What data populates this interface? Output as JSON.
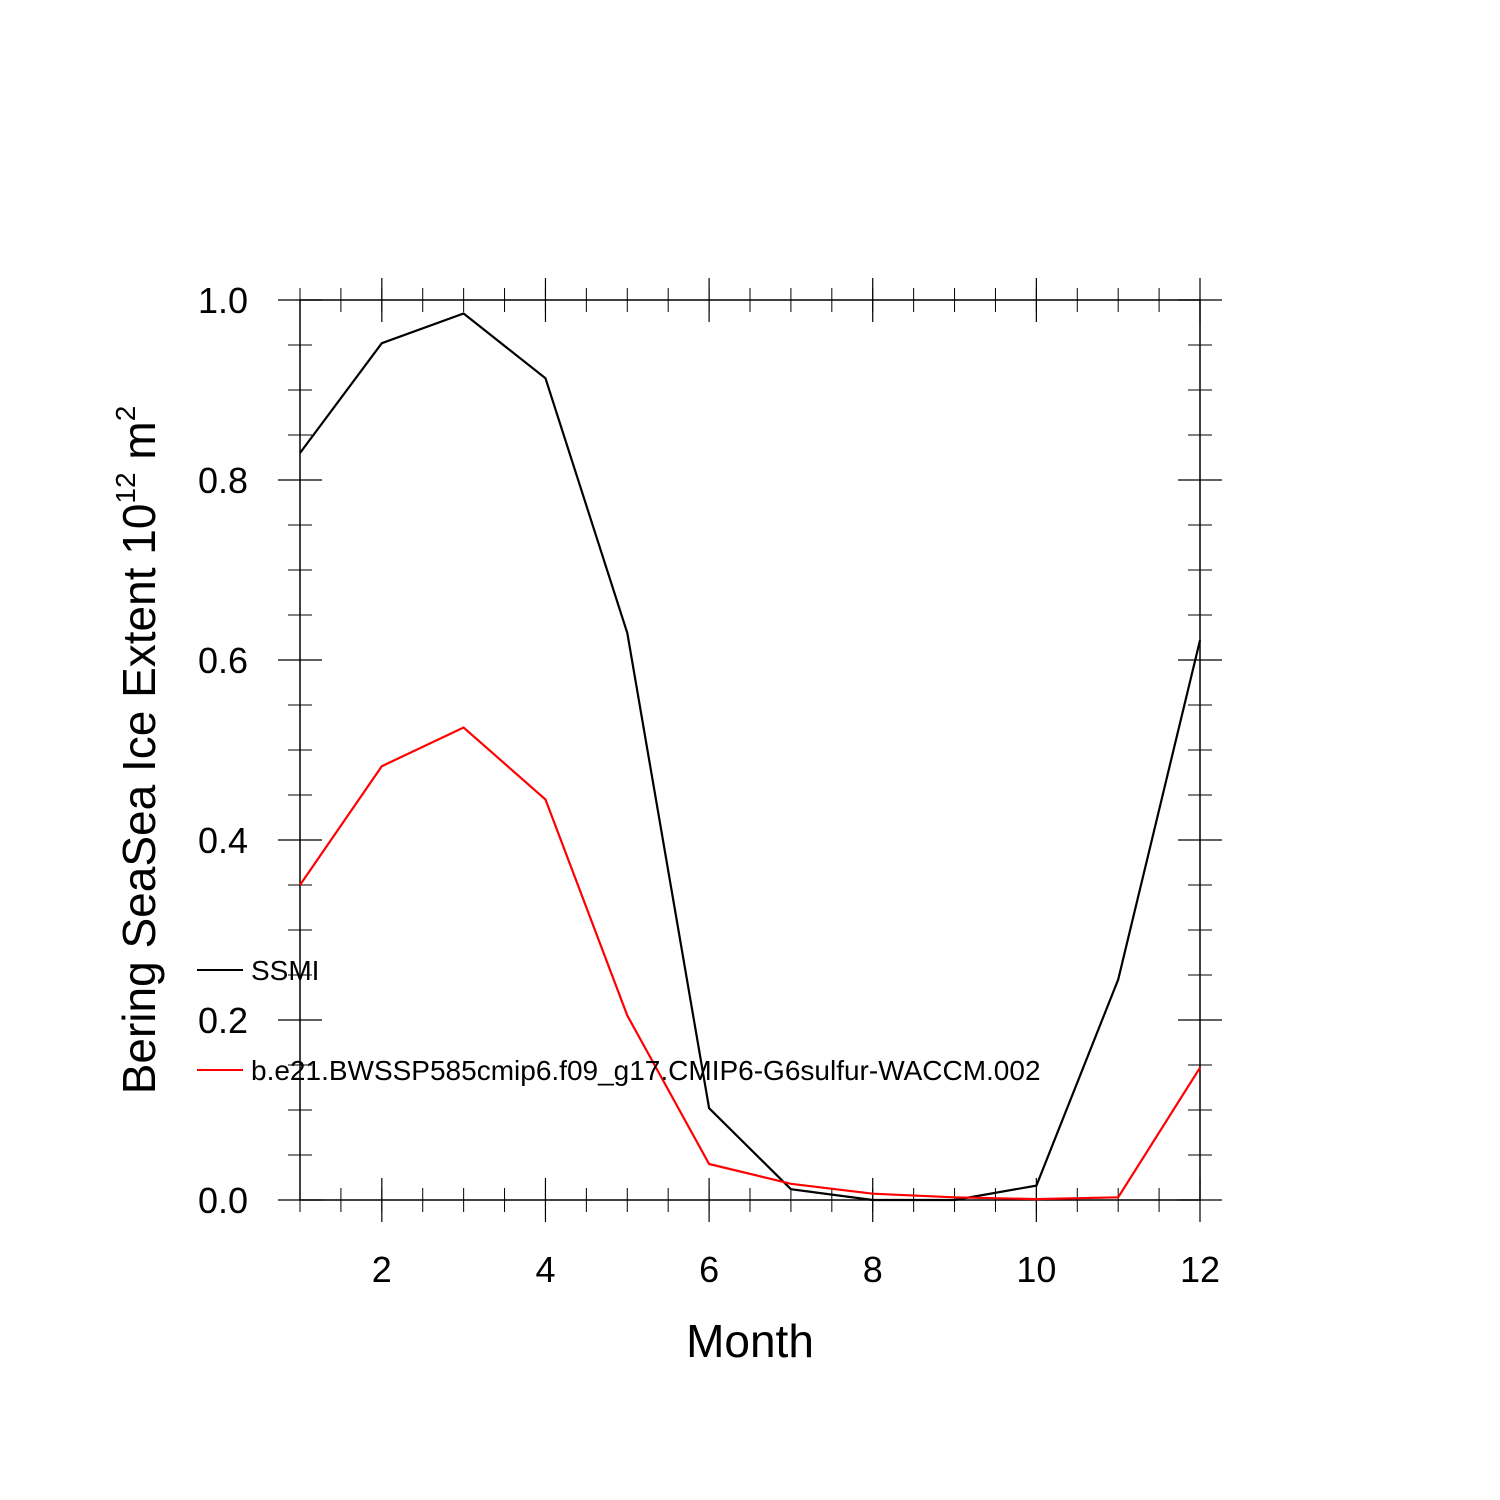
{
  "chart_data": {
    "type": "line",
    "title": "",
    "xlabel": "Month",
    "ylabel": {
      "prefix": "Bering SeaSea Ice Extent 10",
      "exponent": "12",
      "unit": " m",
      "unit_exponent": "2"
    },
    "xlim": [
      1,
      12
    ],
    "ylim": [
      0.0,
      1.0
    ],
    "x_ticks": [
      2,
      4,
      6,
      8,
      10,
      12
    ],
    "x_tick_labels": [
      "2",
      "4",
      "6",
      "8",
      "10",
      "12"
    ],
    "y_ticks": [
      0.0,
      0.2,
      0.4,
      0.6,
      0.8,
      1.0
    ],
    "y_tick_labels": [
      "0.0",
      "0.2",
      "0.4",
      "0.6",
      "0.8",
      "1.0"
    ],
    "grid": false,
    "legend_position": "left-lower-middle",
    "x": [
      1,
      2,
      3,
      4,
      5,
      6,
      7,
      8,
      9,
      10,
      11,
      12
    ],
    "series": [
      {
        "name": "SSMI",
        "color": "#000000",
        "values": [
          0.83,
          0.952,
          0.985,
          0.913,
          0.63,
          0.102,
          0.012,
          0.0,
          0.0,
          0.016,
          0.245,
          0.622
        ]
      },
      {
        "name": "b.e21.BWSSP585cmip6.f09_g17.CMIP6-G6sulfur-WACCM.002",
        "color": "#ff0000",
        "values": [
          0.35,
          0.482,
          0.525,
          0.445,
          0.205,
          0.04,
          0.018,
          0.007,
          0.003,
          0.001,
          0.003,
          0.147
        ]
      }
    ]
  }
}
